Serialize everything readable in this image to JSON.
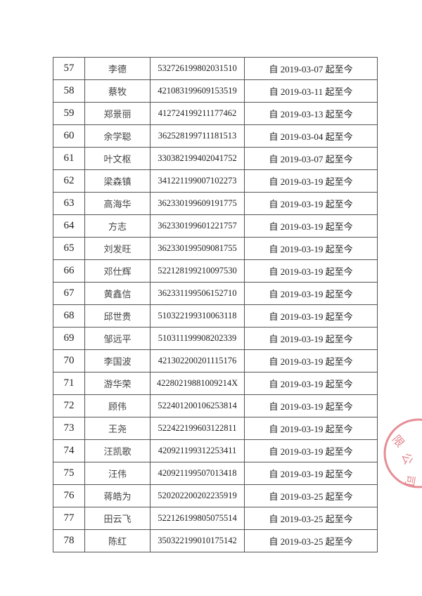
{
  "rows": [
    {
      "no": "57",
      "name": "李德",
      "id": "532726199802031510",
      "period": "自 2019-03-07 起至今"
    },
    {
      "no": "58",
      "name": "蔡牧",
      "id": "421083199609153519",
      "period": "自 2019-03-11 起至今"
    },
    {
      "no": "59",
      "name": "郑景丽",
      "id": "412724199211177462",
      "period": "自 2019-03-13 起至今"
    },
    {
      "no": "60",
      "name": "余学聪",
      "id": "362528199711181513",
      "period": "自 2019-03-04 起至今"
    },
    {
      "no": "61",
      "name": "叶文枢",
      "id": "330382199402041752",
      "period": "自 2019-03-07 起至今"
    },
    {
      "no": "62",
      "name": "梁森镇",
      "id": "341221199007102273",
      "period": "自 2019-03-19 起至今"
    },
    {
      "no": "63",
      "name": "高海华",
      "id": "362330199609191775",
      "period": "自 2019-03-19 起至今"
    },
    {
      "no": "64",
      "name": "方志",
      "id": "362330199601221757",
      "period": "自 2019-03-19 起至今"
    },
    {
      "no": "65",
      "name": "刘发旺",
      "id": "362330199509081755",
      "period": "自 2019-03-19 起至今"
    },
    {
      "no": "66",
      "name": "邓仕辉",
      "id": "522128199210097530",
      "period": "自 2019-03-19 起至今"
    },
    {
      "no": "67",
      "name": "黄鑫信",
      "id": "362331199506152710",
      "period": "自 2019-03-19 起至今"
    },
    {
      "no": "68",
      "name": "邱世贵",
      "id": "510322199310063118",
      "period": "自 2019-03-19 起至今"
    },
    {
      "no": "69",
      "name": "邹远平",
      "id": "510311199908202339",
      "period": "自 2019-03-19 起至今"
    },
    {
      "no": "70",
      "name": "李国波",
      "id": "421302200201115176",
      "period": "自 2019-03-19 起至今"
    },
    {
      "no": "71",
      "name": "游华荣",
      "id": "42280219881009214X",
      "period": "自 2019-03-19 起至今"
    },
    {
      "no": "72",
      "name": "顾伟",
      "id": "522401200106253814",
      "period": "自 2019-03-19 起至今"
    },
    {
      "no": "73",
      "name": "王尧",
      "id": "522422199603122811",
      "period": "自 2019-03-19 起至今"
    },
    {
      "no": "74",
      "name": "汪凯歌",
      "id": "420921199312253411",
      "period": "自 2019-03-19 起至今"
    },
    {
      "no": "75",
      "name": "汪伟",
      "id": "420921199507013418",
      "period": "自 2019-03-19 起至今"
    },
    {
      "no": "76",
      "name": "蒋皓为",
      "id": "520202200202235919",
      "period": "自 2019-03-25 起至今"
    },
    {
      "no": "77",
      "name": "田云飞",
      "id": "522126199805075514",
      "period": "自 2019-03-25 起至今"
    },
    {
      "no": "78",
      "name": "陈红",
      "id": "350322199010175142",
      "period": "自 2019-03-25 起至今"
    }
  ],
  "stamp": {
    "text": "限公司",
    "color": "#e0707a"
  }
}
